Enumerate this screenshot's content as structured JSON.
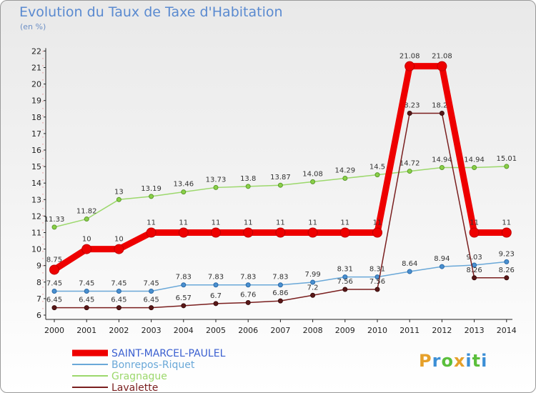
{
  "header": {
    "title": "Evolution du Taux de Taxe d'Habitation",
    "unit": "(en %)"
  },
  "logo": {
    "letters": [
      "P",
      "r",
      "o",
      "x",
      "i",
      "t",
      "i"
    ],
    "colors": [
      "#e6a02a",
      "#3c8fd6",
      "#5bbf3c",
      "#e6a02a",
      "#3c8fd6",
      "#5bbf3c",
      "#3c8fd6"
    ]
  },
  "chart_data": {
    "type": "line",
    "title": "Evolution du Taux de Taxe d'Habitation",
    "ylabel": "(en %)",
    "xlabel": "",
    "x": [
      "2000",
      "2001",
      "2002",
      "2003",
      "2004",
      "2005",
      "2006",
      "2007",
      "2008",
      "2009",
      "2010",
      "2011",
      "2012",
      "2013",
      "2014"
    ],
    "ylim": [
      6,
      22
    ],
    "yticks": [
      "6",
      "7",
      "8",
      "9",
      "10",
      "11",
      "12",
      "13",
      "14",
      "15",
      "16",
      "17",
      "18",
      "19",
      "20",
      "21",
      "22"
    ],
    "grid": false,
    "legend": "bottom-left",
    "series": [
      {
        "name": "SAINT-MARCEL-PAULEL",
        "color": "#ee0000",
        "values": [
          8.75,
          10,
          10,
          11,
          11,
          11,
          11,
          11,
          11,
          11,
          11,
          21.08,
          21.08,
          11,
          11
        ],
        "labels": [
          "8.75",
          "10",
          "10",
          "11",
          "11",
          "11",
          "11",
          "11",
          "11",
          "11",
          "11",
          "21.08",
          "21.08",
          "11",
          "11"
        ]
      },
      {
        "name": "Bonrepos-Riquet",
        "color": "#6aa8d8",
        "values": [
          7.45,
          7.45,
          7.45,
          7.45,
          7.83,
          7.83,
          7.83,
          7.83,
          7.99,
          8.31,
          8.31,
          8.64,
          8.94,
          9.03,
          9.23
        ],
        "labels": [
          "7.45",
          "7.45",
          "7.45",
          "7.45",
          "7.83",
          "7.83",
          "7.83",
          "7.83",
          "7.99",
          "8.31",
          "8.31",
          "8.64",
          "8.94",
          "9.03",
          "9.23"
        ]
      },
      {
        "name": "Gragnague",
        "color": "#9cd86c",
        "values": [
          11.33,
          11.82,
          13,
          13.19,
          13.46,
          13.73,
          13.8,
          13.87,
          14.08,
          14.29,
          14.5,
          14.72,
          14.94,
          14.94,
          15.01
        ],
        "labels": [
          "11.33",
          "11.82",
          "13",
          "13.19",
          "13.46",
          "13.73",
          "13.8",
          "13.87",
          "14.08",
          "14.29",
          "14.5",
          "14.72",
          "14.94",
          "14.94",
          "15.01"
        ]
      },
      {
        "name": "Lavalette",
        "color": "#7a1f1f",
        "values": [
          6.45,
          6.45,
          6.45,
          6.45,
          6.57,
          6.7,
          6.76,
          6.86,
          7.2,
          7.56,
          7.56,
          18.23,
          18.23,
          8.26,
          8.26
        ],
        "labels": [
          "6.45",
          "6.45",
          "6.45",
          "6.45",
          "6.57",
          "6.7",
          "6.76",
          "6.86",
          "7.2",
          "7.56",
          "7.56",
          "18.23",
          "18.23",
          "8.26",
          "8.26"
        ]
      }
    ]
  }
}
